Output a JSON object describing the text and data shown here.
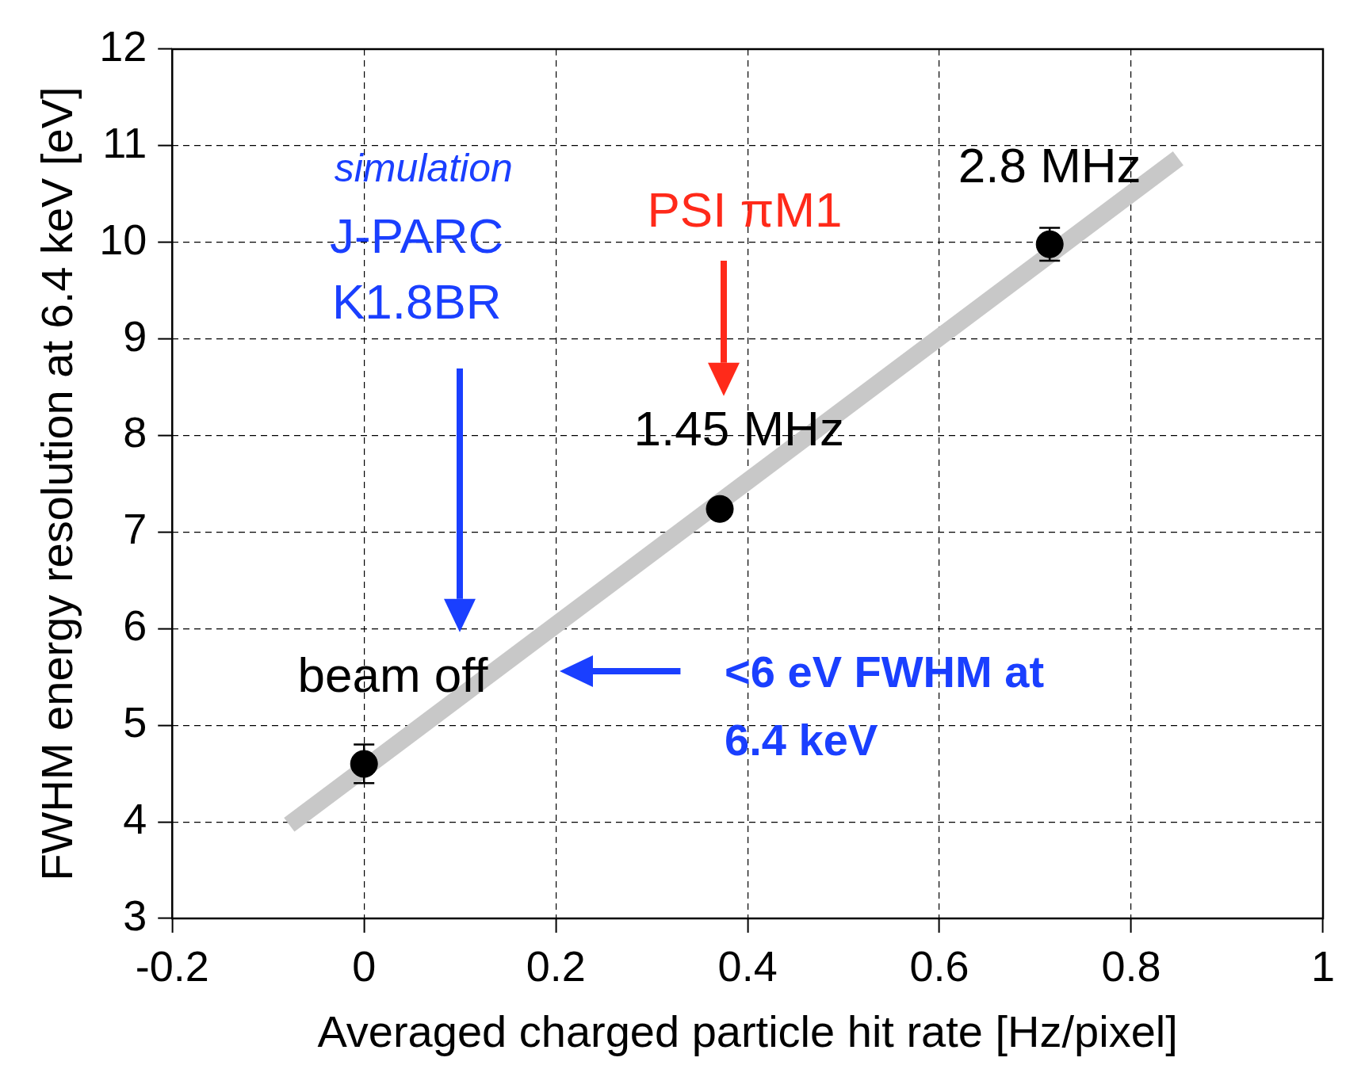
{
  "chart_data": {
    "type": "scatter",
    "xlabel": "Averaged charged particle hit rate [Hz/pixel]",
    "ylabel": "FWHM energy resolution at 6.4 keV [eV]",
    "x": [
      0,
      0.371,
      0.715
    ],
    "series": [
      {
        "color": "#000000",
        "values": [
          4.6,
          7.24,
          9.98
        ],
        "errors": [
          0.2,
          0.07,
          0.17
        ],
        "marker": "circle"
      },
      {
        "type": "line",
        "color": "#c8c8c8",
        "x": [
          -0.078,
          0.849
        ],
        "values": [
          3.97,
          10.87
        ],
        "marker": "none"
      }
    ],
    "xlim": [
      -0.2,
      1
    ],
    "ylim": [
      3,
      12
    ],
    "xticks": [
      -0.2,
      0,
      0.2,
      0.4,
      0.6,
      0.8,
      1
    ],
    "yticks": [
      3,
      4,
      5,
      6,
      7,
      8,
      9,
      10,
      11,
      12
    ],
    "grid": true,
    "line_style": "solid",
    "legend": false,
    "annotations": [
      "simulation",
      "J-PARC K1.8BR",
      "PSI πM1",
      {
        "text": "2.8 MHz",
        "x": 0.715,
        "y": 9.98
      },
      {
        "text": "1.45 MHz",
        "x": 0.371,
        "y": 7.24
      },
      {
        "text": "beam off",
        "x": 0,
        "y": 4.6
      },
      "<6 eV FWHM at 6.4 keV"
    ]
  }
}
